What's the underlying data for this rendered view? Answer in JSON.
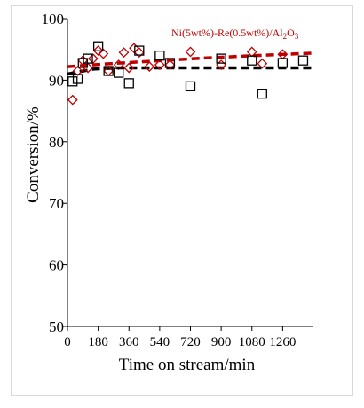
{
  "chart_data": {
    "type": "scatter",
    "title": "",
    "xlabel": "Time on stream/min",
    "ylabel": "Conversion/%",
    "xlim": [
      0,
      1440
    ],
    "ylim": [
      50,
      100
    ],
    "x_ticks": [
      0,
      180,
      360,
      540,
      720,
      900,
      1080,
      1260
    ],
    "x_tick_labels": [
      "0",
      "180",
      "360",
      "540",
      "720",
      "900",
      "1080",
      "1260"
    ],
    "y_ticks": [
      50,
      60,
      70,
      80,
      90,
      100
    ],
    "y_tick_labels": [
      "50",
      "60",
      "70",
      "80",
      "90",
      "100"
    ],
    "grid": false,
    "legend": "top-right",
    "annotation": "Ni(5wt%)-Re(0.5wt%)/Al2O3",
    "series": [
      {
        "name": "Ni(5wt%)-Re(0.5wt%)/Al2O3",
        "marker": "diamond",
        "color": "#c00000",
        "x": [
          30,
          60,
          90,
          120,
          150,
          180,
          210,
          240,
          300,
          330,
          360,
          390,
          420,
          480,
          540,
          600,
          720,
          900,
          1080,
          1140,
          1260
        ],
        "y": [
          86.8,
          91.5,
          93.2,
          92.0,
          93.5,
          94.8,
          94.3,
          91.5,
          92.5,
          94.5,
          92.0,
          95.2,
          94.5,
          92.2,
          92.5,
          92.5,
          94.6,
          92.5,
          94.6,
          92.7,
          94.2
        ]
      },
      {
        "name": "",
        "marker": "square",
        "color": "#000000",
        "x": [
          30,
          60,
          90,
          120,
          180,
          240,
          300,
          360,
          420,
          540,
          600,
          720,
          900,
          1080,
          1140,
          1260,
          1380
        ],
        "y": [
          89.8,
          90.2,
          92.8,
          93.5,
          95.5,
          91.5,
          91.2,
          89.5,
          94.8,
          94.0,
          92.8,
          89.0,
          93.5,
          93.2,
          87.8,
          92.8,
          93.2
        ]
      }
    ],
    "trend_lines": [
      {
        "color": "#c00000",
        "style": "dashed",
        "x": [
          0,
          200,
          500,
          800,
          1100,
          1440
        ],
        "y": [
          92.2,
          92.6,
          93.1,
          93.6,
          94.0,
          94.4
        ]
      },
      {
        "color": "#000000",
        "style": "dashed",
        "x": [
          0,
          150,
          300,
          1440
        ],
        "y": [
          91.0,
          91.8,
          92.0,
          92.0
        ]
      }
    ]
  }
}
